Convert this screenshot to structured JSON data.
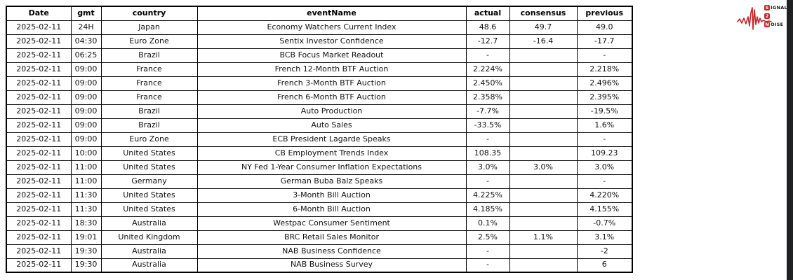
{
  "chart_data": {
    "type": "table",
    "columns": [
      "Date",
      "gmt",
      "country",
      "eventName",
      "actual",
      "consensus",
      "previous"
    ],
    "rows": [
      [
        "2025-02-11",
        "24H",
        "Japan",
        "Economy Watchers Current Index",
        "48.6",
        "49.7",
        "49.0"
      ],
      [
        "2025-02-11",
        "04:30",
        "Euro Zone",
        "Sentix Investor Confidence",
        "-12.7",
        "-16.4",
        "-17.7"
      ],
      [
        "2025-02-11",
        "06:25",
        "Brazil",
        "BCB Focus Market Readout",
        "-",
        "",
        "-"
      ],
      [
        "2025-02-11",
        "09:00",
        "France",
        "French 12-Month BTF Auction",
        "2.224%",
        "",
        "2.218%"
      ],
      [
        "2025-02-11",
        "09:00",
        "France",
        "French 3-Month BTF Auction",
        "2.450%",
        "",
        "2.496%"
      ],
      [
        "2025-02-11",
        "09:00",
        "France",
        "French 6-Month BTF Auction",
        "2.358%",
        "",
        "2.395%"
      ],
      [
        "2025-02-11",
        "09:00",
        "Brazil",
        "Auto Production",
        "-7.7%",
        "",
        "-19.5%"
      ],
      [
        "2025-02-11",
        "09:00",
        "Brazil",
        "Auto Sales",
        "-33.5%",
        "",
        "1.6%"
      ],
      [
        "2025-02-11",
        "09:00",
        "Euro Zone",
        "ECB President Lagarde Speaks",
        "-",
        "",
        "-"
      ],
      [
        "2025-02-11",
        "10:00",
        "United States",
        "CB Employment Trends Index",
        "108.35",
        "",
        "109.23"
      ],
      [
        "2025-02-11",
        "11:00",
        "United States",
        "NY Fed 1-Year Consumer Inflation Expectations",
        "3.0%",
        "3.0%",
        "3.0%"
      ],
      [
        "2025-02-11",
        "11:00",
        "Germany",
        "German Buba Balz Speaks",
        "-",
        "",
        "-"
      ],
      [
        "2025-02-11",
        "11:30",
        "United States",
        "3-Month Bill Auction",
        "4.225%",
        "",
        "4.220%"
      ],
      [
        "2025-02-11",
        "11:30",
        "United States",
        "6-Month Bill Auction",
        "4.185%",
        "",
        "4.155%"
      ],
      [
        "2025-02-11",
        "18:30",
        "Australia",
        "Westpac Consumer Sentiment",
        "0.1%",
        "",
        "-0.7%"
      ],
      [
        "2025-02-11",
        "19:01",
        "United Kingdom",
        "BRC Retail Sales Monitor",
        "2.5%",
        "1.1%",
        "3.1%"
      ],
      [
        "2025-02-11",
        "19:30",
        "Australia",
        "NAB Business Confidence",
        "-",
        "",
        "-2"
      ],
      [
        "2025-02-11",
        "19:30",
        "Australia",
        "NAB Business Survey",
        "-",
        "",
        "6"
      ]
    ],
    "layout": {
      "grid": "all-cell-borders",
      "header_style": "bold",
      "cell_align": "center"
    }
  },
  "logo": {
    "line1_badge": "S",
    "line1_rest": "IGNAL",
    "line2_badge": "2",
    "line2_rest": "",
    "line3_badge": "N",
    "line3_rest": "OISE",
    "accent_color": "#c1272d"
  },
  "colors": {
    "table_border": "#000000",
    "text": "#111111",
    "background": "#ffffff",
    "edge_strip": "#1e2124"
  }
}
